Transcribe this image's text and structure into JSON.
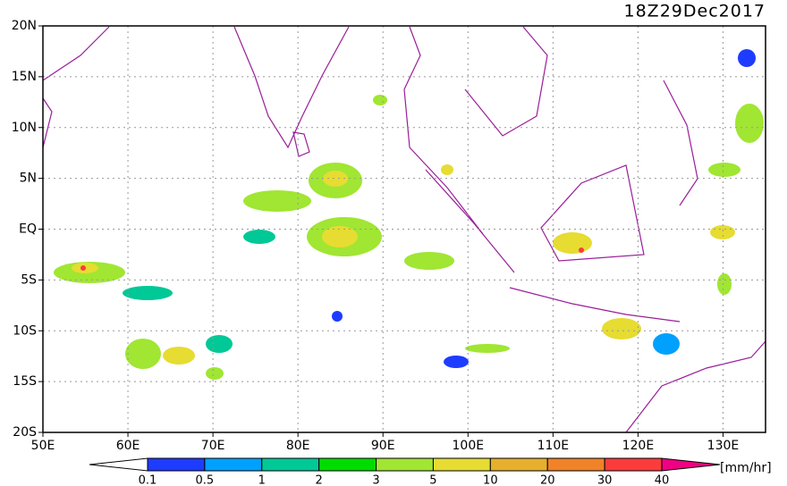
{
  "title": "18Z29Dec2017",
  "lonlim": [
    50,
    135
  ],
  "latlim": [
    -20,
    20
  ],
  "lon_ticks": [
    {
      "value": 50,
      "label": "50E"
    },
    {
      "value": 60,
      "label": "60E"
    },
    {
      "value": 70,
      "label": "70E"
    },
    {
      "value": 80,
      "label": "80E"
    },
    {
      "value": 90,
      "label": "90E"
    },
    {
      "value": 100,
      "label": "100E"
    },
    {
      "value": 110,
      "label": "110E"
    },
    {
      "value": 120,
      "label": "120E"
    },
    {
      "value": 130,
      "label": "130E"
    }
  ],
  "lat_ticks": [
    {
      "value": 20,
      "label": "20N"
    },
    {
      "value": 15,
      "label": "15N"
    },
    {
      "value": 10,
      "label": "10N"
    },
    {
      "value": 5,
      "label": "5N"
    },
    {
      "value": 0,
      "label": "EQ"
    },
    {
      "value": -5,
      "label": "5S"
    },
    {
      "value": -10,
      "label": "10S"
    },
    {
      "value": -15,
      "label": "15S"
    },
    {
      "value": -20,
      "label": "20S"
    }
  ],
  "colorbar": {
    "levels": [
      0.1,
      0.5,
      1,
      2,
      3,
      5,
      10,
      20,
      30,
      40
    ],
    "colors": [
      "#ffffff",
      "#1e3cff",
      "#00a0ff",
      "#00c896",
      "#00dc00",
      "#a0e632",
      "#e6dc32",
      "#e6af2d",
      "#f08228",
      "#fa3c3c",
      "#f00082"
    ],
    "unit": "[mm/hr]"
  }
}
